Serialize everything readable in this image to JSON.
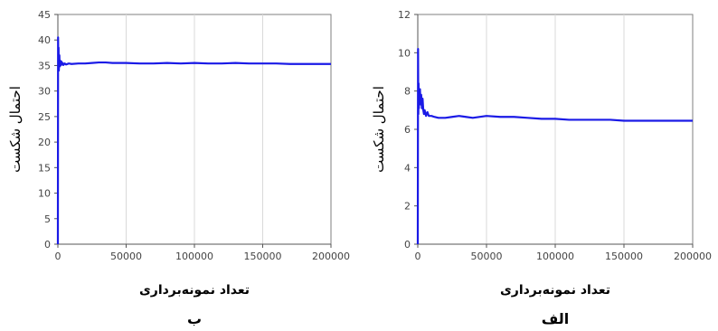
{
  "colors": {
    "series": "#1a1ae6"
  },
  "chart_data": [
    {
      "id": "b",
      "type": "line",
      "panel_label": "ب",
      "title": "",
      "xlabel": "تعداد نمونه‌برداری",
      "ylabel": "احتمال شکست",
      "xlim": [
        0,
        200000
      ],
      "ylim": [
        0,
        45
      ],
      "xticks": [
        0,
        50000,
        100000,
        150000,
        200000
      ],
      "yticks": [
        0,
        5,
        10,
        15,
        20,
        25,
        30,
        35,
        40,
        45
      ],
      "grid": "vertical",
      "series": [
        {
          "x": [
            0,
            150,
            300,
            500,
            700,
            900,
            1100,
            1300,
            1600,
            2000,
            2500,
            3000,
            3500,
            4000,
            5000,
            6000,
            8000,
            10000,
            15000,
            20000,
            25000,
            30000,
            35000,
            40000,
            50000,
            60000,
            70000,
            80000,
            90000,
            100000,
            110000,
            120000,
            130000,
            140000,
            150000,
            160000,
            170000,
            180000,
            190000,
            200000
          ],
          "y": [
            0,
            40.5,
            36,
            38.5,
            34,
            35.5,
            37,
            34.8,
            36,
            35,
            35.8,
            35.2,
            35.5,
            35.1,
            35.4,
            35.2,
            35.4,
            35.3,
            35.4,
            35.4,
            35.5,
            35.6,
            35.6,
            35.5,
            35.5,
            35.4,
            35.4,
            35.5,
            35.4,
            35.5,
            35.4,
            35.4,
            35.5,
            35.4,
            35.4,
            35.4,
            35.3,
            35.3,
            35.3,
            35.3
          ]
        }
      ]
    },
    {
      "id": "alef",
      "type": "line",
      "panel_label": "الف",
      "title": "",
      "xlabel": "تعداد نمونه‌برداری",
      "ylabel": "احتمال شکست",
      "xlim": [
        0,
        200000
      ],
      "ylim": [
        0,
        12
      ],
      "xticks": [
        0,
        50000,
        100000,
        150000,
        200000
      ],
      "yticks": [
        0,
        2,
        4,
        6,
        8,
        10,
        12
      ],
      "grid": "vertical",
      "series": [
        {
          "x": [
            0,
            200,
            400,
            600,
            800,
            1000,
            1300,
            1600,
            2000,
            2500,
            3000,
            3500,
            4000,
            4500,
            5000,
            6000,
            7000,
            8000,
            10000,
            12000,
            15000,
            20000,
            25000,
            30000,
            35000,
            40000,
            50000,
            60000,
            70000,
            80000,
            90000,
            100000,
            110000,
            120000,
            130000,
            140000,
            150000,
            160000,
            170000,
            180000,
            190000,
            200000
          ],
          "y": [
            0,
            10.2,
            6.8,
            8.4,
            7.1,
            8.0,
            7.5,
            8.1,
            7.3,
            7.8,
            7.1,
            7.6,
            7.0,
            6.8,
            7.0,
            6.7,
            6.9,
            6.7,
            6.7,
            6.65,
            6.6,
            6.6,
            6.65,
            6.7,
            6.65,
            6.6,
            6.7,
            6.65,
            6.65,
            6.6,
            6.55,
            6.55,
            6.5,
            6.5,
            6.5,
            6.5,
            6.45,
            6.45,
            6.45,
            6.45,
            6.45,
            6.45
          ]
        }
      ]
    }
  ]
}
